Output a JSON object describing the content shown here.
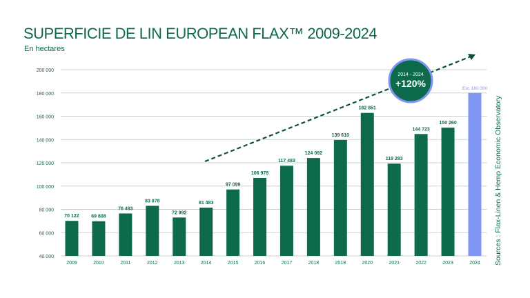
{
  "chart_data": {
    "type": "bar",
    "title": "SUPERFICIE DE LIN EUROPEAN FLAX™ 2009-2024",
    "subtitle": "En hectares",
    "categories": [
      "2009",
      "2010",
      "2011",
      "2012",
      "2013",
      "2014",
      "2015",
      "2016",
      "2017",
      "2018",
      "2019",
      "2020",
      "2021",
      "2022",
      "2023",
      "2024"
    ],
    "values": [
      70122,
      69808,
      76493,
      83078,
      72992,
      81483,
      97099,
      106978,
      117483,
      124092,
      139610,
      162851,
      119283,
      144723,
      150260,
      180000
    ],
    "data_labels": [
      "70 122",
      "69 808",
      "76 493",
      "83 078",
      "72 992",
      "81 483",
      "97 099",
      "106 978",
      "117 483",
      "124 092",
      "139 610",
      "162 851",
      "119 283",
      "144 723",
      "150 260",
      "Est. 180 000"
    ],
    "ylim": [
      40000,
      200000
    ],
    "yticks": [
      40000,
      60000,
      80000,
      100000,
      120000,
      140000,
      160000,
      180000,
      200000
    ],
    "ytick_labels": [
      "40 000",
      "60 000",
      "80 000",
      "100 000",
      "120 000",
      "140 000",
      "160 000",
      "180 000",
      "200 000"
    ],
    "grid": true,
    "colors": {
      "bar": "#0e6a4c",
      "estimate_bar": "#7f96f5",
      "grid": "#c9d3ce",
      "text": "#0e6a4c"
    },
    "annotation": {
      "period": "2014 - 2024",
      "growth": "+120%",
      "trend_arrow": "dashed-up-right"
    },
    "source": "Sources : Flax-Linen & Hemp Economic Observatory"
  }
}
